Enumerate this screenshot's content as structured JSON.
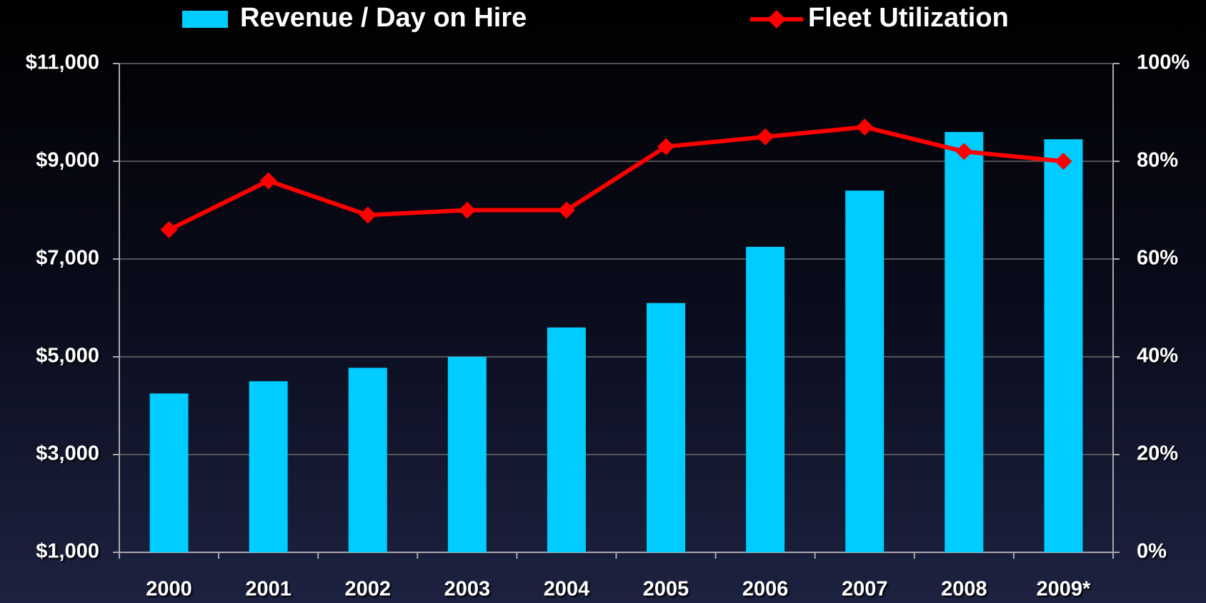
{
  "chart_data": {
    "type": "bar_line",
    "categories": [
      "2000",
      "2001",
      "2002",
      "2003",
      "2004",
      "2005",
      "2006",
      "2007",
      "2008",
      "2009*"
    ],
    "series": [
      {
        "name": "Revenue / Day on Hire",
        "color": "#00ccff",
        "type": "bar",
        "axis": "y",
        "values": [
          4250,
          4500,
          4775,
          5000,
          5600,
          6100,
          7250,
          8400,
          9600,
          9450
        ]
      },
      {
        "name": "Fleet Utilization",
        "color": "#ff0000",
        "type": "line",
        "axis": "y2",
        "values": [
          66,
          76,
          69,
          70,
          70,
          83,
          85,
          87,
          82,
          80
        ]
      }
    ],
    "ylim": [
      1000,
      11000
    ],
    "yticks": [
      {
        "value": 1000,
        "label": "$1,000"
      },
      {
        "value": 3000,
        "label": "$3,000"
      },
      {
        "value": 5000,
        "label": "$5,000"
      },
      {
        "value": 7000,
        "label": "$7,000"
      },
      {
        "value": 9000,
        "label": "$9,000"
      },
      {
        "value": 11000,
        "label": "$11,000"
      }
    ],
    "y2lim": [
      0,
      100
    ],
    "y2ticks": [
      {
        "value": 0,
        "label": "0%"
      },
      {
        "value": 20,
        "label": "20%"
      },
      {
        "value": 40,
        "label": "40%"
      },
      {
        "value": 60,
        "label": "60%"
      },
      {
        "value": 80,
        "label": "80%"
      },
      {
        "value": 100,
        "label": "100%"
      }
    ],
    "grid": true,
    "legend": "top"
  }
}
